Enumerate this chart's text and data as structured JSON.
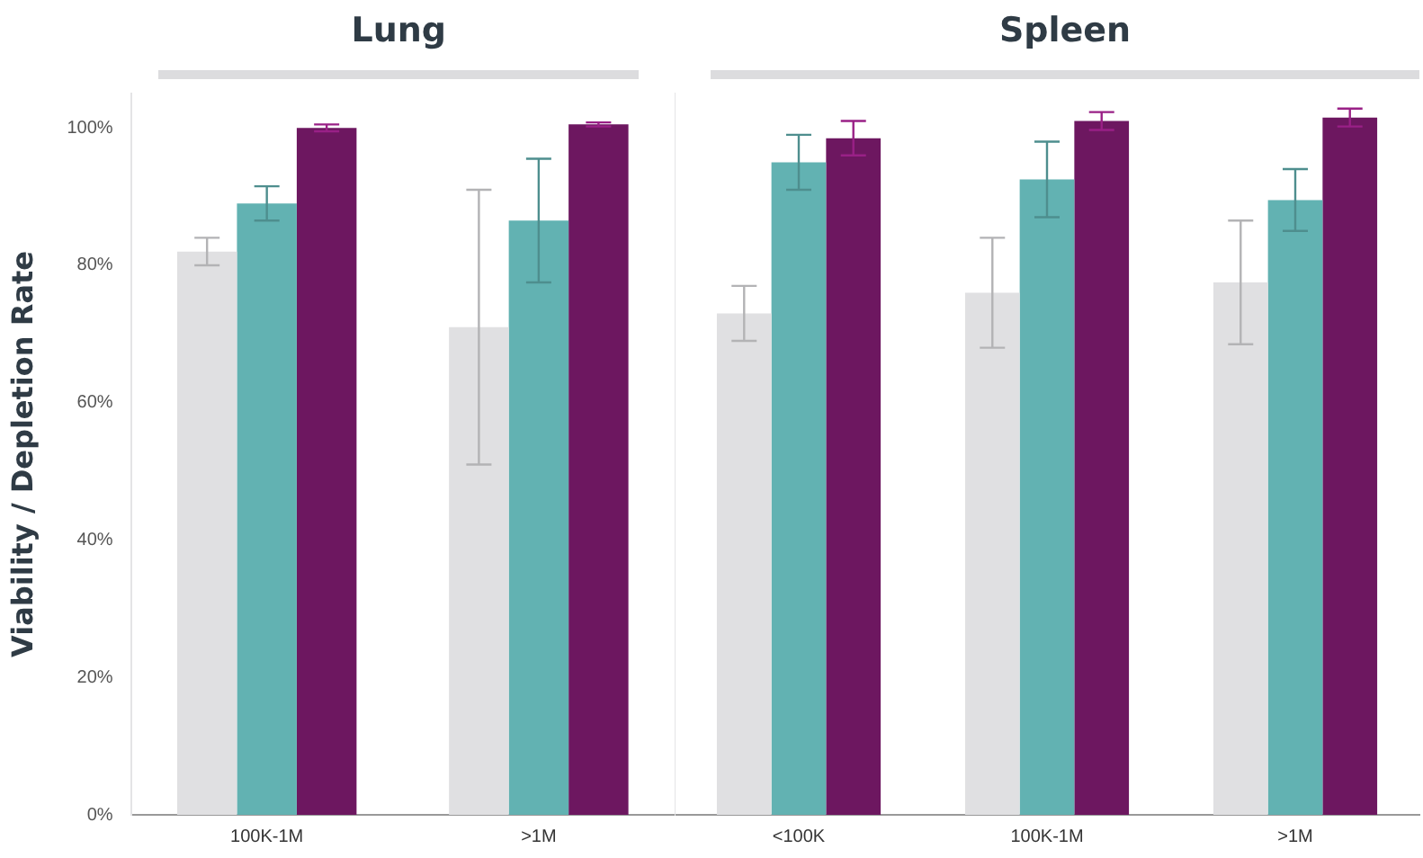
{
  "chart_data": [
    {
      "type": "bar",
      "title": "Lung",
      "ylabel": "Viability / Depletion Rate",
      "categories": [
        "100K-1M",
        ">1M"
      ],
      "series": [
        {
          "color": "#e0e0e2",
          "values": [
            82,
            71
          ],
          "errors": [
            2,
            20
          ]
        },
        {
          "color": "#62b2b2",
          "values": [
            89,
            86.5
          ],
          "errors": [
            2.5,
            9
          ]
        },
        {
          "color": "#6d1760",
          "values": [
            100,
            100.5
          ],
          "errors": [
            0.5,
            0.3
          ]
        }
      ],
      "ylim": [
        0,
        105
      ],
      "yticks": [
        {
          "value": 0,
          "label": "0%"
        },
        {
          "value": 20,
          "label": "20%"
        },
        {
          "value": 40,
          "label": "40%"
        },
        {
          "value": 60,
          "label": "60%"
        },
        {
          "value": 80,
          "label": "80%"
        },
        {
          "value": 100,
          "label": "100%"
        }
      ],
      "grid": false,
      "legend": false
    },
    {
      "type": "bar",
      "title": "Spleen",
      "categories": [
        "<100K",
        "100K-1M",
        ">1M"
      ],
      "series": [
        {
          "color": "#e0e0e2",
          "values": [
            73,
            76,
            77.5
          ],
          "errors": [
            4,
            8,
            9
          ]
        },
        {
          "color": "#62b2b2",
          "values": [
            95,
            92.5,
            89.5
          ],
          "errors": [
            4,
            5.5,
            4.5
          ]
        },
        {
          "color": "#6d1760",
          "values": [
            98.5,
            101,
            101.5
          ],
          "errors": [
            2.5,
            1.3,
            1.3
          ]
        }
      ],
      "ylim": [
        0,
        105
      ],
      "tick_labels": "x",
      "grid": false,
      "legend": false
    }
  ]
}
